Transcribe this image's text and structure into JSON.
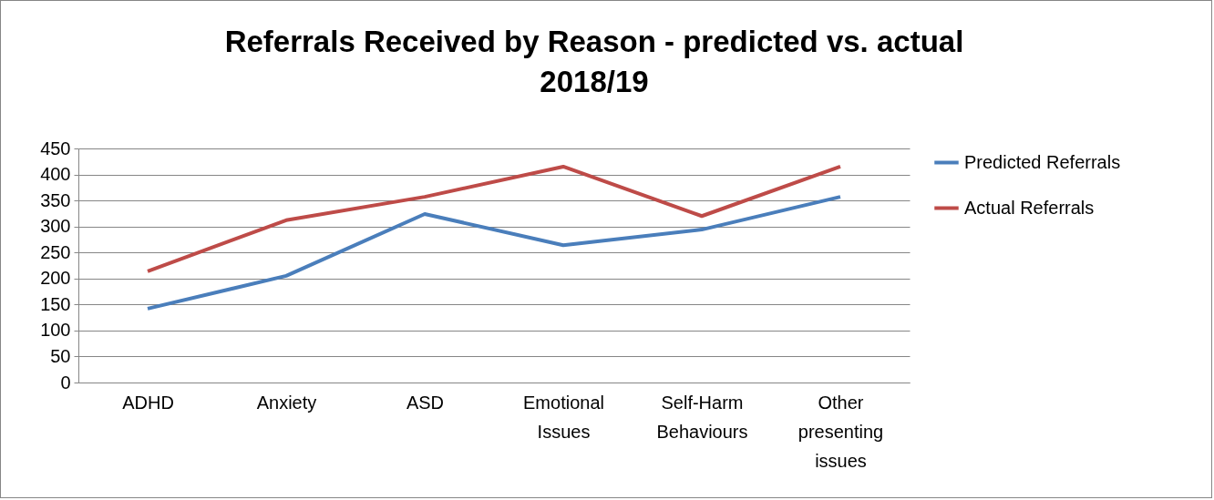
{
  "chart_data": {
    "type": "line",
    "title": "Referrals Received by Reason - predicted vs. actual 2018/19",
    "categories": [
      "ADHD",
      "Anxiety",
      "ASD",
      "Emotional Issues",
      "Self-Harm Behaviours",
      "Other presenting issues"
    ],
    "series": [
      {
        "name": "Predicted Referrals",
        "color": "#4a7ebb",
        "values": [
          142,
          205,
          324,
          264,
          294,
          357
        ]
      },
      {
        "name": "Actual Referrals",
        "color": "#be4b48",
        "values": [
          214,
          312,
          357,
          415,
          320,
          415
        ]
      }
    ],
    "ylim": [
      0,
      450
    ],
    "yticks": [
      0,
      50,
      100,
      150,
      200,
      250,
      300,
      350,
      400,
      450
    ],
    "grid": "y",
    "legend": "right",
    "marker": "none",
    "line_style": "solid"
  }
}
